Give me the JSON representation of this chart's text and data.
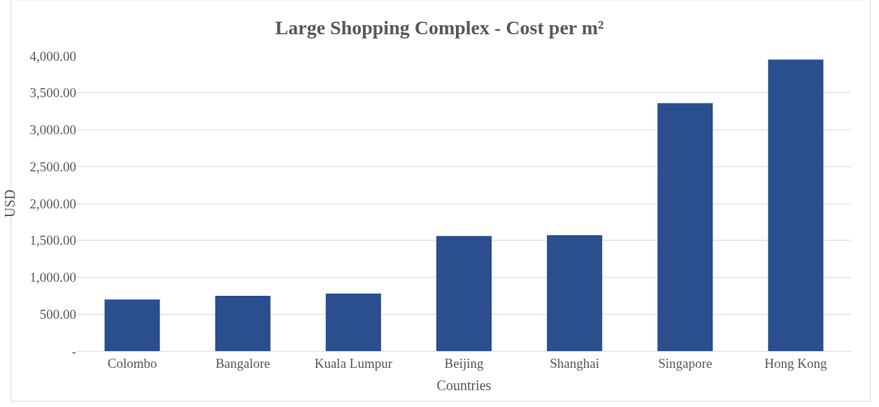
{
  "chart_data": {
    "type": "bar",
    "title": "Large Shopping Complex - Cost per m²",
    "xlabel": "Countries",
    "ylabel": "USD",
    "categories": [
      "Colombo",
      "Bangalore",
      "Kuala Lumpur",
      "Beijing",
      "Shanghai",
      "Singapore",
      "Hong Kong"
    ],
    "values": [
      700,
      750,
      780,
      1560,
      1570,
      3360,
      3950
    ],
    "color": "#2a4e8e",
    "ylim": [
      0,
      4000
    ],
    "yticks": [
      {
        "value": 0,
        "label": "-"
      },
      {
        "value": 500,
        "label": "500.00"
      },
      {
        "value": 1000,
        "label": "1,000.00"
      },
      {
        "value": 1500,
        "label": "1,500.00"
      },
      {
        "value": 2000,
        "label": "2,000.00"
      },
      {
        "value": 2500,
        "label": "2,500.00"
      },
      {
        "value": 3000,
        "label": "3,000.00"
      },
      {
        "value": 3500,
        "label": "3,500.00"
      },
      {
        "value": 4000,
        "label": "4,000.00"
      }
    ],
    "grid": "y"
  }
}
